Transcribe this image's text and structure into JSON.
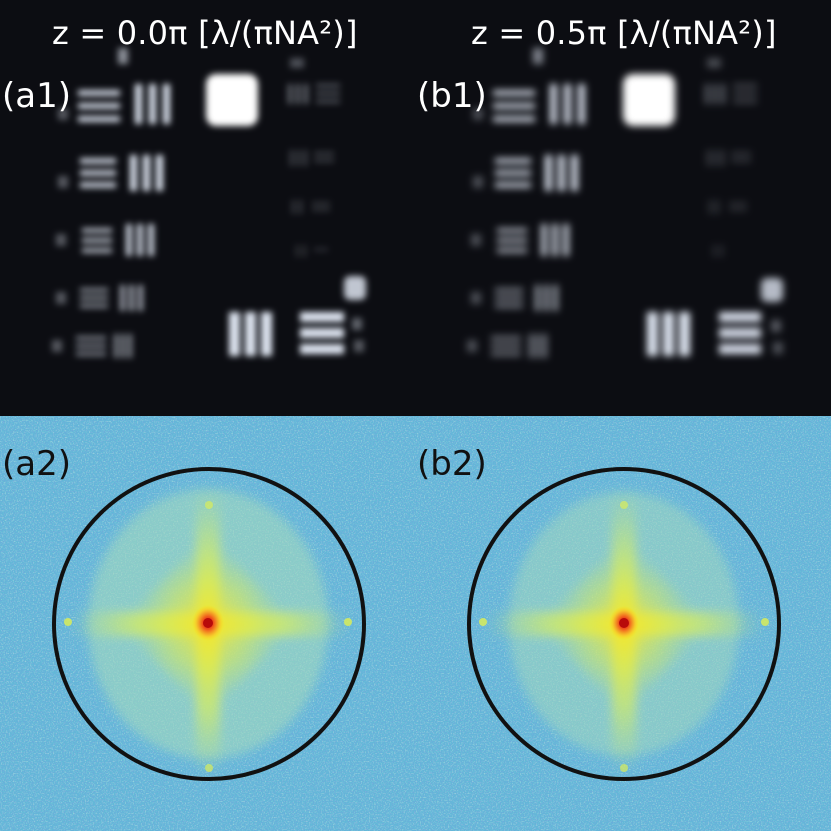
{
  "panels": {
    "a1": {
      "title": "z = 0.0π [λ/(πNA²)]",
      "tag": "(a1)"
    },
    "b1": {
      "title": "z = 0.5π [λ/(πNA²)]",
      "tag": "(b1)"
    },
    "a2": {
      "tag": "(a2)"
    },
    "b2": {
      "tag": "(b2)"
    }
  },
  "colors": {
    "image_background": "#0c0d12",
    "bar_glow": "#dfe6f2",
    "spectrum_background": "#5fb6d6",
    "spectrum_core": "#e8231c",
    "spectrum_mid": "#f6e21a",
    "pupil_circle": "#111111"
  }
}
